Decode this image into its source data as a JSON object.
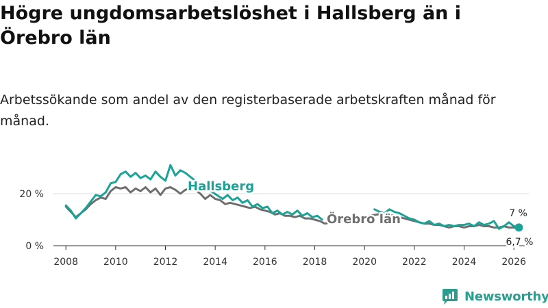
{
  "title": "Högre ungdomsarbetslöshet i Hallsberg än i Örebro län",
  "subtitle": "Arbetssökande som andel av den registerbaserade arbetskraften månad för månad.",
  "brand": "Newsworthy",
  "colors": {
    "hallsberg": "#1aa396",
    "orebro": "#6e6e6e",
    "axis": "#333333",
    "grid": "#dddddd",
    "brand": "#2a9d8f"
  },
  "chart_data": {
    "type": "line",
    "title": "Högre ungdomsarbetslöshet i Hallsberg än i Örebro län",
    "xlabel": "",
    "ylabel": "",
    "xlim": [
      2007.5,
      2026.6
    ],
    "ylim": [
      0,
      30
    ],
    "yticks": [
      0,
      20
    ],
    "ytick_labels": [
      "0 %",
      "20 %"
    ],
    "xticks": [
      2008,
      2010,
      2012,
      2014,
      2016,
      2018,
      2020,
      2022,
      2024,
      2026
    ],
    "grid": true,
    "series": [
      {
        "name": "Hallsberg",
        "label": "Hallsberg",
        "end_label": "7 %",
        "points": [
          [
            2008.0,
            15.5
          ],
          [
            2008.2,
            13.5
          ],
          [
            2008.4,
            10.5
          ],
          [
            2008.6,
            12.5
          ],
          [
            2008.8,
            14.5
          ],
          [
            2009.0,
            17.0
          ],
          [
            2009.2,
            19.5
          ],
          [
            2009.4,
            19.0
          ],
          [
            2009.6,
            20.5
          ],
          [
            2009.8,
            24.0
          ],
          [
            2010.0,
            24.5
          ],
          [
            2010.2,
            27.5
          ],
          [
            2010.4,
            28.5
          ],
          [
            2010.6,
            26.5
          ],
          [
            2010.8,
            28.0
          ],
          [
            2011.0,
            26.0
          ],
          [
            2011.2,
            27.0
          ],
          [
            2011.4,
            25.5
          ],
          [
            2011.6,
            28.5
          ],
          [
            2011.8,
            26.5
          ],
          [
            2012.0,
            25.0
          ],
          [
            2012.2,
            31.0
          ],
          [
            2012.4,
            27.0
          ],
          [
            2012.6,
            29.0
          ],
          [
            2012.8,
            28.0
          ],
          [
            2013.0,
            26.5
          ],
          [
            2013.2,
            25.0
          ],
          [
            2014.3,
            18.0
          ],
          [
            2014.5,
            19.5
          ],
          [
            2014.7,
            17.5
          ],
          [
            2014.9,
            18.5
          ],
          [
            2015.1,
            16.5
          ],
          [
            2015.3,
            17.5
          ],
          [
            2015.5,
            15.0
          ],
          [
            2015.7,
            16.0
          ],
          [
            2015.9,
            14.5
          ],
          [
            2016.1,
            15.0
          ],
          [
            2016.3,
            12.5
          ],
          [
            2016.5,
            13.5
          ],
          [
            2016.7,
            12.0
          ],
          [
            2016.9,
            13.0
          ],
          [
            2017.1,
            12.0
          ],
          [
            2017.3,
            13.5
          ],
          [
            2017.5,
            11.5
          ],
          [
            2017.7,
            12.5
          ],
          [
            2017.9,
            11.0
          ],
          [
            2018.1,
            11.5
          ],
          [
            2018.3,
            10.0
          ]
        ],
        "points_2": [
          [
            2020.4,
            14.0
          ],
          [
            2020.6,
            13.0
          ],
          [
            2020.8,
            12.5
          ],
          [
            2021.0,
            14.0
          ],
          [
            2021.2,
            13.0
          ],
          [
            2021.4,
            12.5
          ],
          [
            2021.6,
            11.5
          ],
          [
            2021.8,
            10.5
          ],
          [
            2022.0,
            10.0
          ],
          [
            2022.2,
            9.0
          ],
          [
            2022.4,
            8.5
          ],
          [
            2022.6,
            9.5
          ],
          [
            2022.8,
            8.0
          ],
          [
            2023.0,
            8.5
          ],
          [
            2023.2,
            7.5
          ],
          [
            2023.4,
            8.0
          ],
          [
            2023.6,
            7.5
          ],
          [
            2023.8,
            8.0
          ],
          [
            2024.0,
            8.0
          ],
          [
            2024.2,
            8.5
          ],
          [
            2024.4,
            7.5
          ],
          [
            2024.6,
            9.0
          ],
          [
            2024.8,
            8.0
          ],
          [
            2025.0,
            8.5
          ],
          [
            2025.2,
            9.5
          ],
          [
            2025.4,
            6.5
          ],
          [
            2025.6,
            7.5
          ],
          [
            2025.8,
            9.0
          ],
          [
            2026.0,
            7.5
          ],
          [
            2026.2,
            7.0
          ]
        ]
      },
      {
        "name": "Örebro län",
        "label": "Örebro län",
        "end_label": "6,7 %",
        "points": [
          [
            2008.0,
            15.0
          ],
          [
            2008.2,
            13.0
          ],
          [
            2008.4,
            11.0
          ],
          [
            2008.6,
            12.5
          ],
          [
            2008.8,
            14.0
          ],
          [
            2009.0,
            16.0
          ],
          [
            2009.2,
            17.5
          ],
          [
            2009.4,
            18.5
          ],
          [
            2009.6,
            18.0
          ],
          [
            2009.8,
            21.0
          ],
          [
            2010.0,
            22.5
          ],
          [
            2010.2,
            22.0
          ],
          [
            2010.4,
            22.5
          ],
          [
            2010.6,
            20.5
          ],
          [
            2010.8,
            22.0
          ],
          [
            2011.0,
            21.0
          ],
          [
            2011.2,
            22.5
          ],
          [
            2011.4,
            20.5
          ],
          [
            2011.6,
            22.0
          ],
          [
            2011.8,
            19.5
          ],
          [
            2012.0,
            22.0
          ],
          [
            2012.2,
            22.5
          ],
          [
            2012.4,
            21.5
          ],
          [
            2012.6,
            20.0
          ],
          [
            2012.8,
            21.5
          ],
          [
            2013.0,
            22.0
          ],
          [
            2013.2,
            21.5
          ],
          [
            2013.4,
            20.0
          ],
          [
            2013.6,
            18.0
          ],
          [
            2013.8,
            19.5
          ],
          [
            2014.0,
            18.0
          ],
          [
            2014.2,
            17.5
          ],
          [
            2014.4,
            16.0
          ],
          [
            2014.6,
            16.5
          ],
          [
            2014.8,
            16.0
          ],
          [
            2015.0,
            15.5
          ],
          [
            2015.2,
            15.0
          ],
          [
            2015.4,
            14.5
          ],
          [
            2015.6,
            15.0
          ],
          [
            2015.8,
            14.0
          ],
          [
            2016.0,
            13.5
          ],
          [
            2016.2,
            13.0
          ],
          [
            2016.4,
            12.0
          ],
          [
            2016.6,
            12.5
          ],
          [
            2016.8,
            11.5
          ],
          [
            2017.0,
            11.5
          ],
          [
            2017.2,
            11.0
          ],
          [
            2017.4,
            11.5
          ],
          [
            2017.6,
            10.5
          ],
          [
            2017.8,
            10.5
          ],
          [
            2018.0,
            10.0
          ],
          [
            2018.2,
            9.5
          ],
          [
            2018.4,
            8.5
          ],
          [
            2020.8,
            12.5
          ],
          [
            2021.0,
            12.0
          ],
          [
            2021.2,
            11.5
          ],
          [
            2021.4,
            11.0
          ],
          [
            2021.6,
            10.5
          ],
          [
            2021.8,
            10.0
          ],
          [
            2022.0,
            9.5
          ],
          [
            2022.2,
            9.0
          ],
          [
            2022.4,
            8.5
          ],
          [
            2022.6,
            8.5
          ],
          [
            2022.8,
            8.0
          ],
          [
            2023.0,
            8.0
          ],
          [
            2023.2,
            7.5
          ],
          [
            2023.4,
            7.0
          ],
          [
            2023.6,
            7.5
          ],
          [
            2023.8,
            7.5
          ],
          [
            2024.0,
            7.0
          ],
          [
            2024.2,
            7.5
          ],
          [
            2024.4,
            7.5
          ],
          [
            2024.6,
            8.0
          ],
          [
            2024.8,
            7.5
          ],
          [
            2025.0,
            7.5
          ],
          [
            2025.2,
            7.0
          ],
          [
            2025.4,
            7.0
          ],
          [
            2025.6,
            7.5
          ],
          [
            2025.8,
            7.0
          ],
          [
            2026.0,
            7.0
          ],
          [
            2026.2,
            6.7
          ]
        ]
      }
    ]
  }
}
